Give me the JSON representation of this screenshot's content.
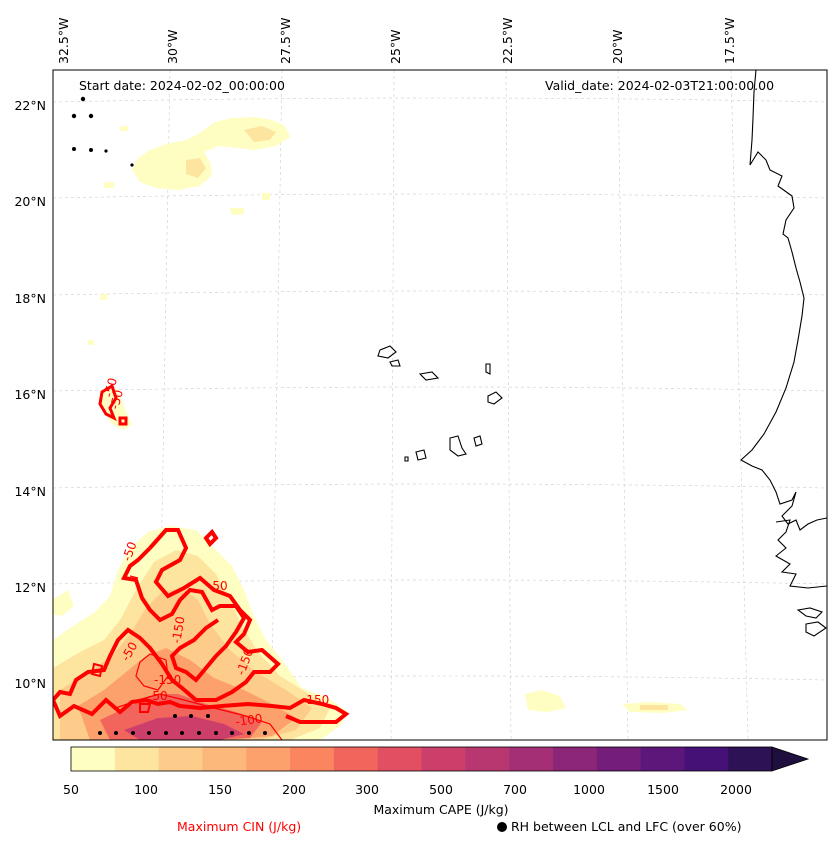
{
  "map": {
    "start_label": "Start date: 2024-02-02_00:00:00",
    "valid_label": "Valid_date: 2024-02-03T21:00:00.00",
    "lon_labels": [
      "32.5°W",
      "30°W",
      "27.5°W",
      "25°W",
      "22.5°W",
      "20°W",
      "17.5°W"
    ],
    "lat_labels": [
      "22°N",
      "20°N",
      "18°N",
      "16°N",
      "14°N",
      "12°N",
      "10°N"
    ],
    "contour_labels": [
      "-50",
      "-50",
      "-50",
      "-50",
      "-150",
      "-150",
      "-150",
      "-50",
      "-50",
      "-150",
      "-100"
    ],
    "coast_color": "#000000",
    "grid_color": "#cccccc",
    "cin_color": "#ff0000"
  },
  "colorbar": {
    "tick_labels": [
      "50",
      "100",
      "150",
      "200",
      "300",
      "500",
      "700",
      "1000",
      "1500",
      "2000"
    ],
    "colors": [
      "#fffec2",
      "#fde5a0",
      "#fdcc8a",
      "#fcb77a",
      "#fca06c",
      "#fb855f",
      "#f1655d",
      "#e24f62",
      "#cd3f6b",
      "#b93771",
      "#a42f74",
      "#8b2678",
      "#741d7b",
      "#5d177b",
      "#451177",
      "#2d1255",
      "#1e0f3e"
    ],
    "label": "Maximum CAPE (J/kg)"
  },
  "legend": {
    "cin_label": "Maximum CIN (J/kg)",
    "rh_label": "RH between LCL and LFC (over 60%)"
  }
}
